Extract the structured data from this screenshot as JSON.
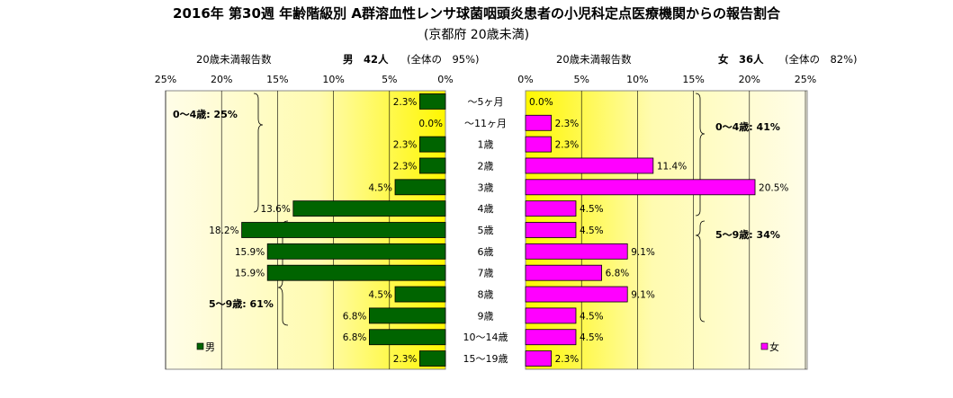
{
  "title": "2016年 第30週 年齢階級別 A群溶血性レンサ球菌咽頭炎患者の小児科定点医療機関からの報告割合",
  "subtitle": "(京都府 20歳未満)",
  "male_header": {
    "count_label": "20歳未満報告数",
    "gender_count": "男　42人",
    "share": "(全体の　95%)"
  },
  "female_header": {
    "count_label": "20歳未満報告数",
    "gender_count": "女　36人",
    "share": "(全体の　82%)"
  },
  "colors": {
    "male": "#006400",
    "female": "#ff00ff",
    "plot_bg_edge": "#fffde0",
    "plot_bg_center": "#fff700"
  },
  "chart_data": {
    "type": "bar",
    "orientation": "horizontal-population-pyramid",
    "categories": [
      "～5ヶ月",
      "～11ヶ月",
      "1歳",
      "2歳",
      "3歳",
      "4歳",
      "5歳",
      "6歳",
      "7歳",
      "8歳",
      "9歳",
      "10～14歳",
      "15～19歳"
    ],
    "x_ticks": [
      "25%",
      "20%",
      "15%",
      "10%",
      "5%",
      "0%"
    ],
    "x_ticks_right": [
      "0%",
      "5%",
      "10%",
      "15%",
      "20%",
      "25%"
    ],
    "xlim": [
      0,
      25
    ],
    "series": [
      {
        "name": "男",
        "side": "left",
        "values": [
          2.3,
          0.0,
          2.3,
          2.3,
          4.5,
          13.6,
          18.2,
          15.9,
          15.9,
          4.5,
          6.8,
          6.8,
          2.3
        ],
        "labels": [
          "2.3%",
          "0.0%",
          "2.3%",
          "2.3%",
          "4.5%",
          "13.6%",
          "18.2%",
          "15.9%",
          "15.9%",
          "4.5%",
          "6.8%",
          "6.8%",
          "2.3%"
        ]
      },
      {
        "name": "女",
        "side": "right",
        "values": [
          0.0,
          2.3,
          2.3,
          11.4,
          20.5,
          4.5,
          4.5,
          9.1,
          6.8,
          9.1,
          4.5,
          4.5,
          2.3
        ],
        "labels": [
          "0.0%",
          "2.3%",
          "2.3%",
          "11.4%",
          "20.5%",
          "4.5%",
          "4.5%",
          "9.1%",
          "6.8%",
          "9.1%",
          "4.5%",
          "4.5%",
          "2.3%"
        ]
      }
    ],
    "annotations": {
      "male_0_4": "0～4歳: 25%",
      "male_5_9": "5～9歳: 61%",
      "female_0_4": "0～4歳: 41%",
      "female_5_9": "5～9歳: 34%"
    },
    "legend": {
      "male": "男",
      "female": "女"
    },
    "grid": true
  }
}
